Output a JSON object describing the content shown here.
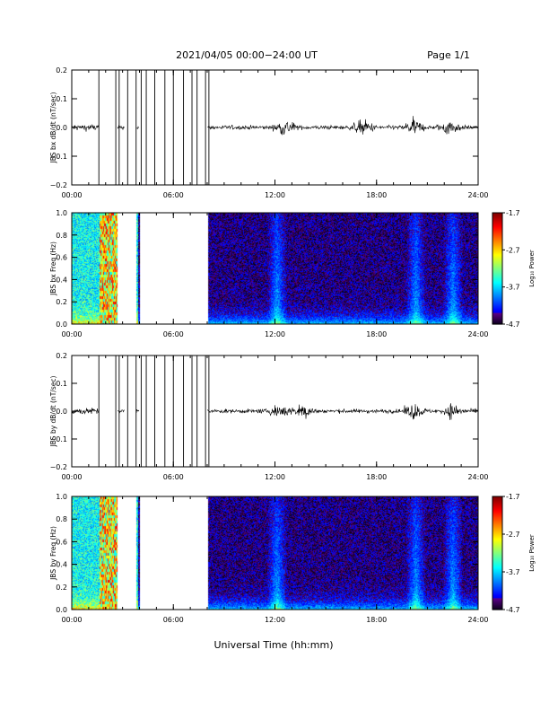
{
  "header": {
    "title": "2021/04/05  00:00−24:00 UT",
    "page": "Page 1/1"
  },
  "xaxis": {
    "label": "Universal Time (hh:mm)",
    "ticks": [
      "00:00",
      "06:00",
      "12:00",
      "18:00",
      "24:00"
    ],
    "range_hours": [
      0,
      24
    ]
  },
  "colorbar": {
    "label": "Log₁₀ Power",
    "ticks": [
      "-1.7",
      "-2.7",
      "-3.7",
      "-4.7"
    ],
    "range": [
      -4.7,
      -1.7
    ]
  },
  "chart_data": [
    {
      "type": "line",
      "ylabel": "JBS bx dB/dt (nT/sec)",
      "ylim": [
        -0.2,
        0.2
      ],
      "yticks": [
        "0.2",
        "0.1",
        "0.0",
        "−0.1",
        "−0.2"
      ],
      "grid": false,
      "noise_level_nT_per_sec": 0.01,
      "bursts_hours": [
        12.6,
        17.2,
        20.2,
        22.3
      ],
      "data_gaps_hours": [
        [
          1.6,
          2.7
        ],
        [
          3.1,
          3.8
        ],
        [
          4.0,
          8.0
        ]
      ],
      "spikes_hours": [
        1.6,
        2.6,
        2.8,
        3.3,
        3.8,
        4.1,
        4.4,
        4.9,
        5.5,
        6.0,
        6.6,
        7.1,
        7.4,
        7.9,
        8.1
      ]
    },
    {
      "type": "heatmap",
      "ylabel": "JBS bx Freq (Hz)",
      "ylim": [
        0,
        1
      ],
      "yticks": [
        "1.0",
        "0.8",
        "0.6",
        "0.4",
        "0.2",
        "0.0"
      ],
      "data_gaps_hours": [
        [
          2.7,
          3.8
        ],
        [
          4.0,
          8.0
        ]
      ],
      "saturated_block_hours": [
        1.6,
        2.7
      ],
      "enhancements_hours": [
        12.1,
        20.3,
        22.5
      ]
    },
    {
      "type": "line",
      "ylabel": "JBS by dB/dt (nT/sec)",
      "ylim": [
        -0.2,
        0.2
      ],
      "yticks": [
        "0.2",
        "0.1",
        "0.0",
        "−0.1",
        "−0.2"
      ],
      "grid": false,
      "noise_level_nT_per_sec": 0.01,
      "bursts_hours": [
        12.3,
        13.7,
        20.2,
        22.5
      ],
      "data_gaps_hours": [
        [
          1.6,
          2.7
        ],
        [
          3.1,
          3.8
        ],
        [
          4.0,
          8.0
        ]
      ],
      "spikes_hours": [
        1.6,
        2.6,
        2.8,
        3.3,
        3.8,
        4.1,
        4.4,
        4.9,
        5.5,
        6.0,
        6.6,
        7.1,
        7.4,
        7.9,
        8.1
      ]
    },
    {
      "type": "heatmap",
      "ylabel": "JBS by Freq (Hz)",
      "ylim": [
        0,
        1
      ],
      "yticks": [
        "1.0",
        "0.8",
        "0.6",
        "0.4",
        "0.2",
        "0.0"
      ],
      "data_gaps_hours": [
        [
          2.7,
          3.8
        ],
        [
          4.0,
          8.0
        ]
      ],
      "saturated_block_hours": [
        1.6,
        2.7
      ],
      "enhancements_hours": [
        12.1,
        20.3,
        22.5
      ]
    }
  ]
}
